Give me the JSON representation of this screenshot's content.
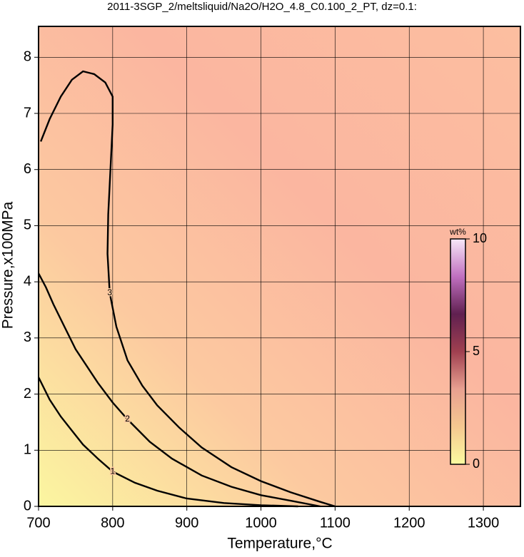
{
  "chart_data": {
    "type": "contour",
    "title": "2011-3SGP_2/meltsliquid/Na2O/H2O_4.8_C0.100_2_PT, dz=0.1:",
    "x_label": "Temperature,°C",
    "y_label": "Pressure,x100MPa",
    "xlim": [
      700,
      1350
    ],
    "ylim": [
      0,
      8.55
    ],
    "xticks": [
      700,
      800,
      900,
      1000,
      1100,
      1200,
      1300
    ],
    "yticks": [
      0,
      1,
      2,
      3,
      4,
      5,
      6,
      7,
      8
    ],
    "grid": true,
    "series": [
      {
        "level": 1,
        "color": "#000000",
        "x": [
          700,
          715,
          730,
          745,
          760,
          780,
          800,
          830,
          860,
          900,
          950,
          1000,
          1050
        ],
        "y": [
          2.3,
          1.9,
          1.6,
          1.35,
          1.1,
          0.85,
          0.62,
          0.42,
          0.28,
          0.14,
          0.06,
          0.02,
          0
        ]
      },
      {
        "level": 2,
        "color": "#000000",
        "x": [
          700,
          710,
          720,
          735,
          750,
          765,
          780,
          800,
          820,
          850,
          880,
          920,
          960,
          1000,
          1040,
          1080
        ],
        "y": [
          4.15,
          3.9,
          3.6,
          3.2,
          2.8,
          2.5,
          2.2,
          1.85,
          1.55,
          1.15,
          0.85,
          0.55,
          0.35,
          0.2,
          0.1,
          0
        ]
      },
      {
        "level": 3,
        "color": "#000000",
        "x": [
          703,
          715,
          730,
          745,
          760,
          775,
          790,
          800,
          800,
          797,
          794,
          793,
          796,
          805,
          820,
          840,
          860,
          890,
          920,
          960,
          1000,
          1040,
          1080,
          1100
        ],
        "y": [
          6.5,
          6.9,
          7.3,
          7.6,
          7.75,
          7.7,
          7.55,
          7.3,
          6.8,
          6.0,
          5.2,
          4.5,
          3.8,
          3.2,
          2.6,
          2.15,
          1.8,
          1.4,
          1.05,
          0.7,
          0.45,
          0.25,
          0.08,
          0
        ]
      }
    ],
    "colorbar": {
      "label": "wt%",
      "lim": [
        0,
        10
      ],
      "ticks": [
        0,
        5,
        10
      ],
      "colormap": [
        "#fbfba0",
        "#f5c890",
        "#e8a090",
        "#a04050",
        "#602050",
        "#c070c0",
        "#f8e8f8"
      ]
    }
  }
}
